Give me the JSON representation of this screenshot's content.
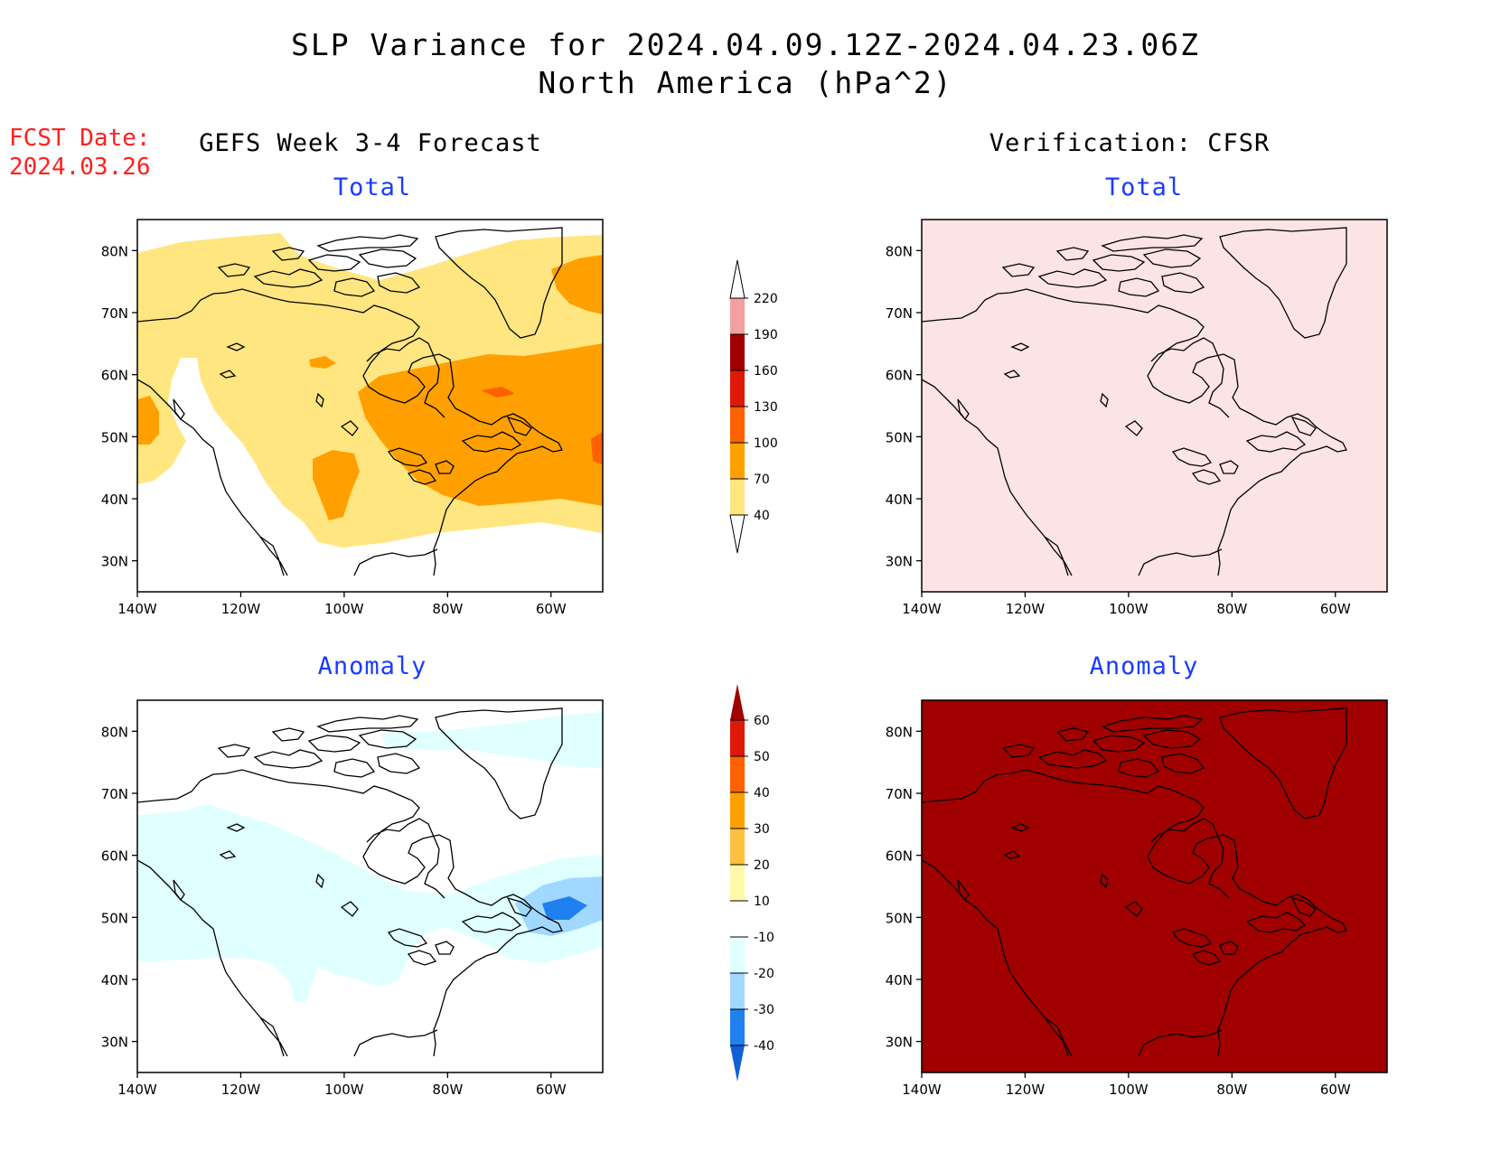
{
  "title": "SLP Variance for 2024.04.09.12Z-2024.04.23.06Z",
  "subtitle": "North America (hPa^2)",
  "fcst_date": {
    "label": "FCST Date:",
    "value": "2024.03.26"
  },
  "left_column_title": "GEFS Week 3-4 Forecast",
  "right_column_title": "Verification: CFSR",
  "panel_labels": {
    "total": "Total",
    "anomaly": "Anomaly"
  },
  "axes": {
    "lat_ticks": [
      "80N",
      "70N",
      "60N",
      "50N",
      "40N",
      "30N"
    ],
    "lon_ticks": [
      "140W",
      "120W",
      "100W",
      "80W",
      "60W"
    ],
    "lat_range": [
      25,
      85
    ],
    "lon_range": [
      -140,
      -50
    ]
  },
  "total_colorbar": {
    "levels": [
      "220",
      "190",
      "160",
      "130",
      "100",
      "70",
      "40"
    ],
    "colors": [
      "#ffffff",
      "#f4a0a0",
      "#a00000",
      "#e01808",
      "#ff6000",
      "#ffa000",
      "#ffe680"
    ]
  },
  "anomaly_colorbar": {
    "levels": [
      "60",
      "50",
      "40",
      "30",
      "20",
      "10",
      "-10",
      "-20",
      "-30",
      "-40"
    ],
    "colors": [
      "#a00000",
      "#e01808",
      "#ff6000",
      "#ffa000",
      "#ffc040",
      "#fff8a8",
      "#ffffff",
      "#e0ffff",
      "#a0d8ff",
      "#2080f0",
      "#1060d8"
    ]
  },
  "panel_fill": {
    "forecast_total_base": "#ffe680",
    "forecast_total_high": "#ffa000",
    "forecast_total_peak": "#ff6000",
    "forecast_anomaly_base": "#e0ffff",
    "forecast_anomaly_mid": "#a0d8ff",
    "forecast_anomaly_low": "#2080f0",
    "verif_total": "#fde4e4",
    "verif_anomaly": "#a00000"
  }
}
